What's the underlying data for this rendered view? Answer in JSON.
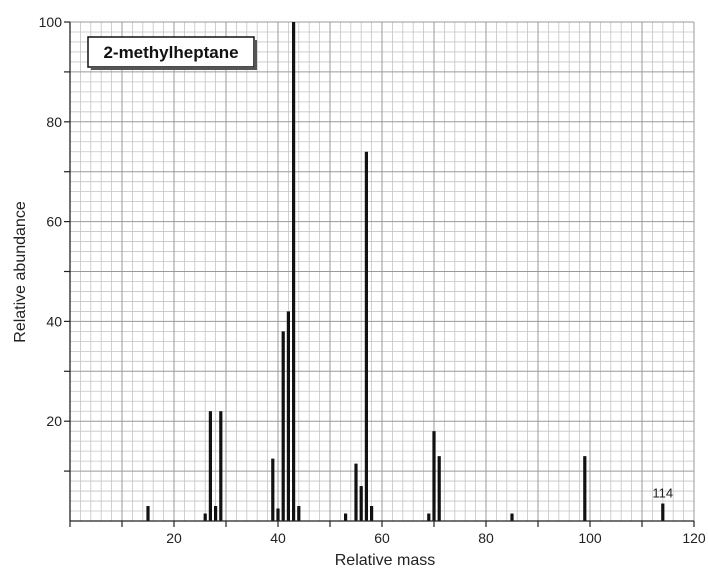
{
  "chart_data": {
    "type": "bar",
    "title": "2-methylheptane",
    "xlabel": "Relative mass",
    "ylabel": "Relative abundance",
    "xlim": [
      0,
      120
    ],
    "ylim": [
      0,
      100
    ],
    "x_ticks": [
      20,
      40,
      60,
      80,
      100,
      120
    ],
    "y_ticks": [
      20,
      40,
      60,
      80,
      100
    ],
    "grid": true,
    "peaks": [
      {
        "x": 15,
        "y": 3
      },
      {
        "x": 26,
        "y": 1.5
      },
      {
        "x": 27,
        "y": 22
      },
      {
        "x": 28,
        "y": 3
      },
      {
        "x": 29,
        "y": 22
      },
      {
        "x": 39,
        "y": 12.5
      },
      {
        "x": 40,
        "y": 2.5
      },
      {
        "x": 41,
        "y": 38
      },
      {
        "x": 42,
        "y": 42
      },
      {
        "x": 43,
        "y": 100
      },
      {
        "x": 44,
        "y": 3
      },
      {
        "x": 53,
        "y": 1.5
      },
      {
        "x": 55,
        "y": 11.5
      },
      {
        "x": 56,
        "y": 7
      },
      {
        "x": 57,
        "y": 74
      },
      {
        "x": 58,
        "y": 3
      },
      {
        "x": 69,
        "y": 1.5
      },
      {
        "x": 70,
        "y": 18
      },
      {
        "x": 71,
        "y": 13
      },
      {
        "x": 85,
        "y": 1.5
      },
      {
        "x": 99,
        "y": 13
      },
      {
        "x": 114,
        "y": 3.5
      }
    ],
    "annotations": [
      {
        "x": 114,
        "text": "114"
      }
    ]
  }
}
